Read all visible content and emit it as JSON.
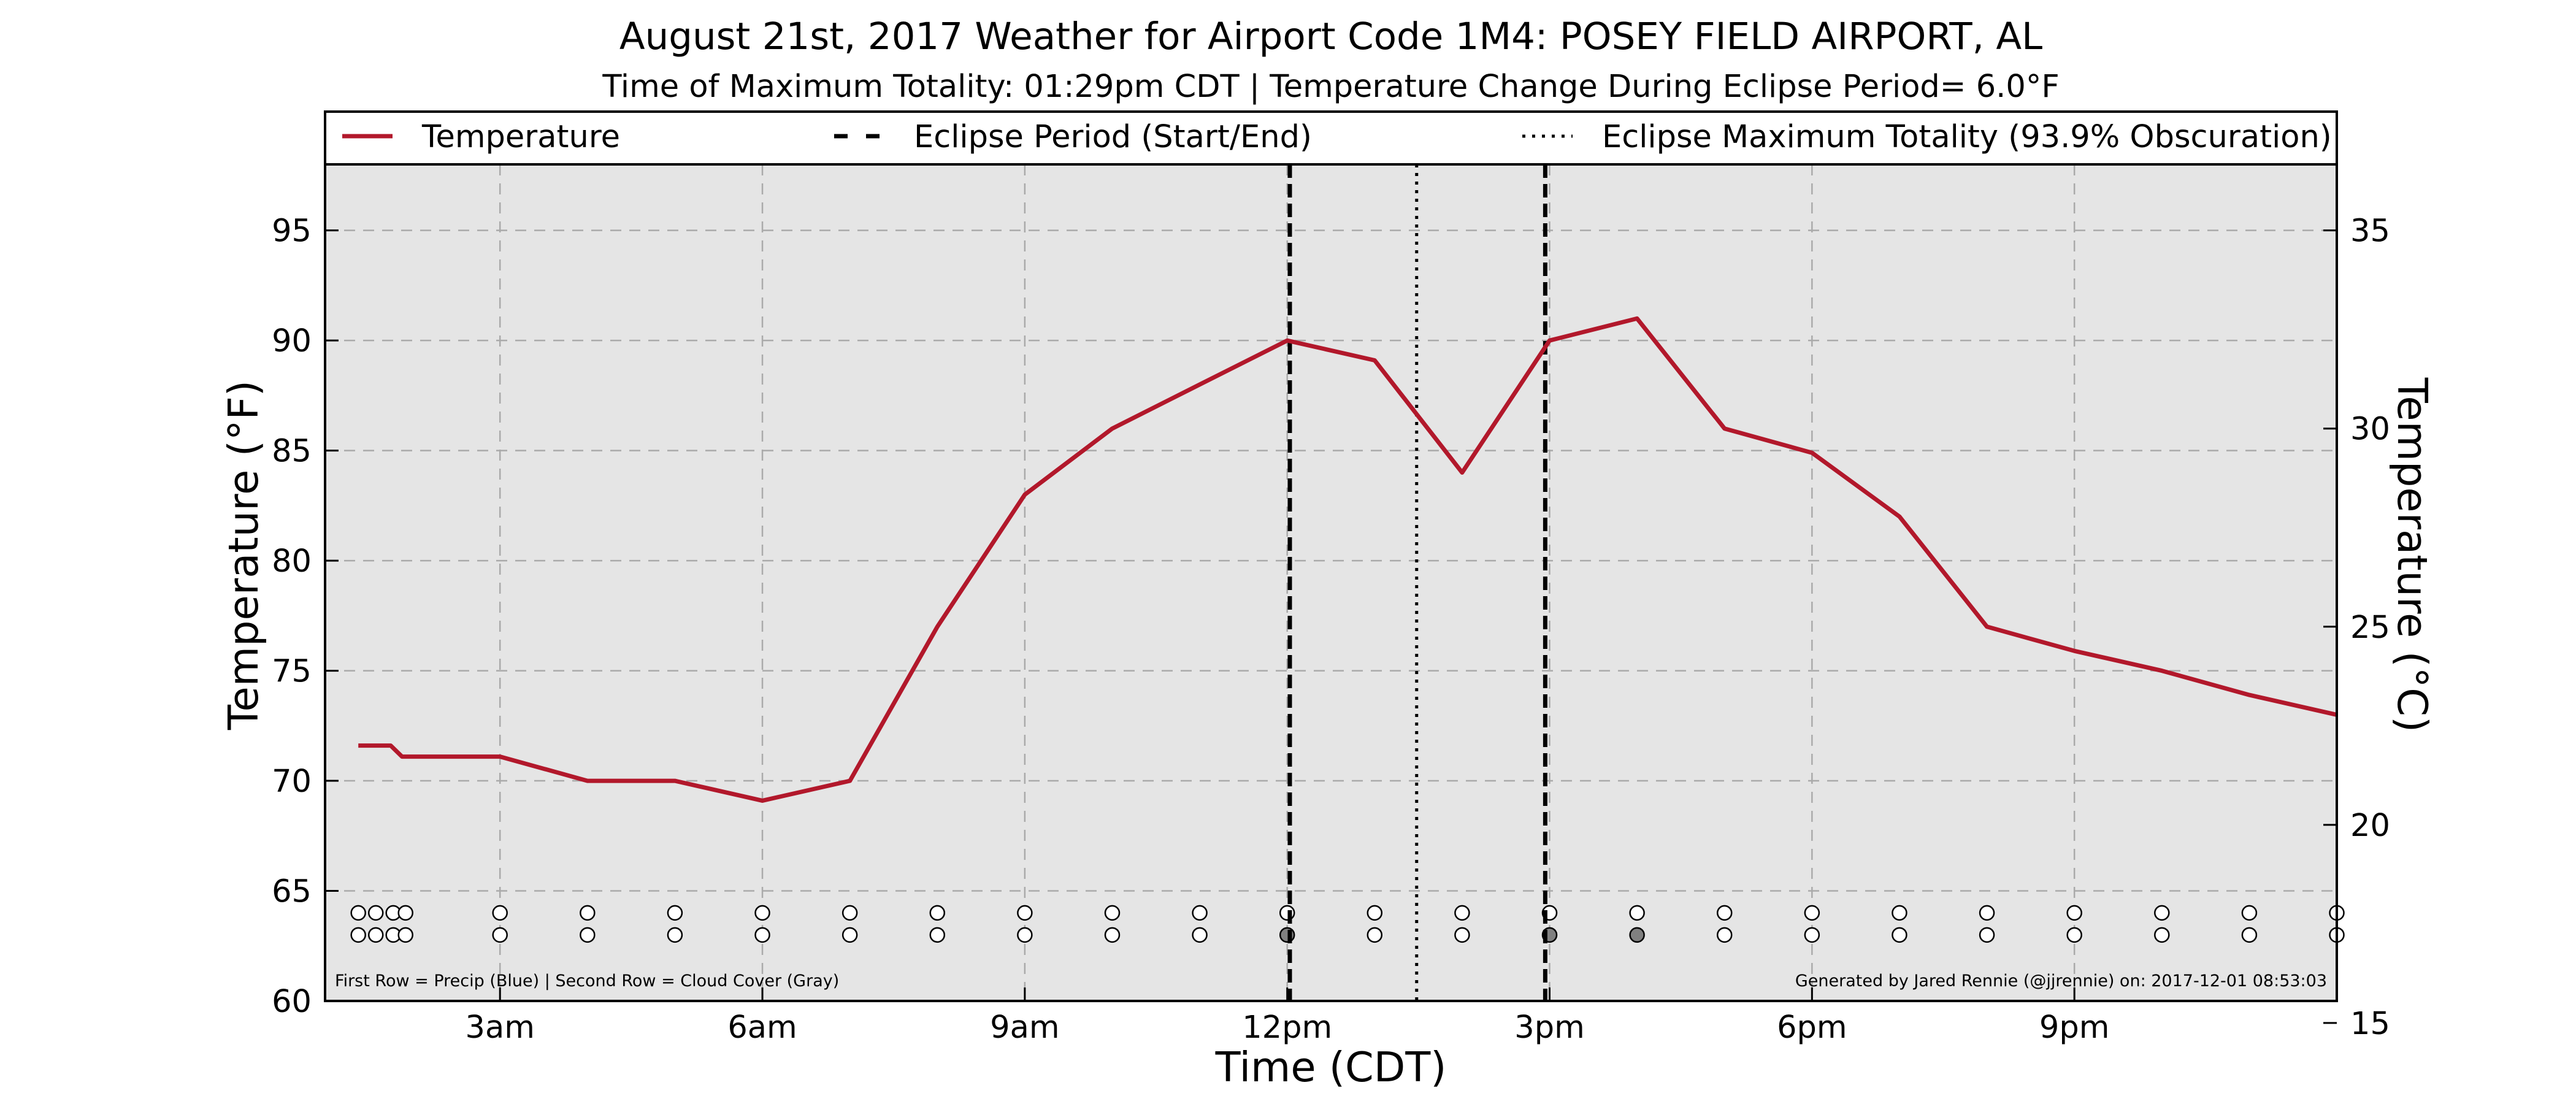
{
  "chart_data": {
    "type": "line",
    "title": "August 21st, 2017 Weather for Airport Code 1M4: POSEY FIELD AIRPORT, AL",
    "subtitle": "Time of Maximum Totality: 01:29pm CDT | Temperature Change During Eclipse Period= 6.0°F",
    "xlabel": "Time (CDT)",
    "ylabel": "Temperature (°F)",
    "ylabel_right": "Temperature (°C)",
    "xlim": [
      1,
      24
    ],
    "ylim": [
      60,
      98
    ],
    "ylim_right": [
      15.5556,
      36.6667
    ],
    "x_ticks": [
      {
        "x": 3,
        "label": "3am"
      },
      {
        "x": 6,
        "label": "6am"
      },
      {
        "x": 9,
        "label": "9am"
      },
      {
        "x": 12,
        "label": "12pm"
      },
      {
        "x": 15,
        "label": "3pm"
      },
      {
        "x": 18,
        "label": "6pm"
      },
      {
        "x": 21,
        "label": "9pm"
      }
    ],
    "y_ticks": [
      60,
      65,
      70,
      75,
      80,
      85,
      90,
      95
    ],
    "y_ticks_right": [
      15,
      20,
      25,
      30,
      35
    ],
    "grid": true,
    "legend_position": "top",
    "series": [
      {
        "name": "Temperature",
        "color": "#b2182b",
        "points": [
          [
            1.38,
            71.6
          ],
          [
            1.75,
            71.6
          ],
          [
            1.88,
            71.1
          ],
          [
            3.0,
            71.1
          ],
          [
            4.0,
            70.0
          ],
          [
            5.0,
            70.0
          ],
          [
            6.0,
            69.1
          ],
          [
            7.0,
            70.0
          ],
          [
            8.0,
            77.0
          ],
          [
            9.0,
            83.0
          ],
          [
            10.0,
            86.0
          ],
          [
            11.0,
            88.0
          ],
          [
            12.0,
            90.0
          ],
          [
            13.0,
            89.1
          ],
          [
            14.0,
            84.0
          ],
          [
            15.0,
            90.0
          ],
          [
            16.0,
            91.0
          ],
          [
            17.0,
            86.0
          ],
          [
            18.0,
            84.9
          ],
          [
            19.0,
            82.0
          ],
          [
            20.0,
            77.0
          ],
          [
            21.0,
            75.9
          ],
          [
            22.0,
            75.0
          ],
          [
            23.0,
            73.9
          ],
          [
            24.0,
            73.0
          ]
        ]
      }
    ],
    "eclipse_period": {
      "name": "Eclipse Period (Start/End)",
      "start": 12.03,
      "end": 14.95
    },
    "max_totality": {
      "name": "Eclipse Maximum Totality (93.9% Obscuration)",
      "x": 13.48
    },
    "observation_rows": {
      "y_precip": 64.0,
      "y_cloud": 63.0,
      "hours": [
        1.38,
        1.58,
        1.78,
        1.92,
        3,
        4,
        5,
        6,
        7,
        8,
        9,
        10,
        11,
        12,
        13,
        14,
        15,
        16,
        17,
        18,
        19,
        20,
        21,
        22,
        23,
        24
      ],
      "cloud_gray_hours": [
        12,
        15,
        16
      ]
    },
    "footnote_left": "First Row = Precip (Blue) | Second Row = Cloud Cover (Gray)",
    "footnote_right": "Generated by Jared Rennie (@jjrennie) on: 2017-12-01 08:53:03"
  },
  "colors": {
    "plot_background": "#e5e5e5",
    "temperature_line": "#b2182b",
    "cloud_gray": "#808080"
  }
}
